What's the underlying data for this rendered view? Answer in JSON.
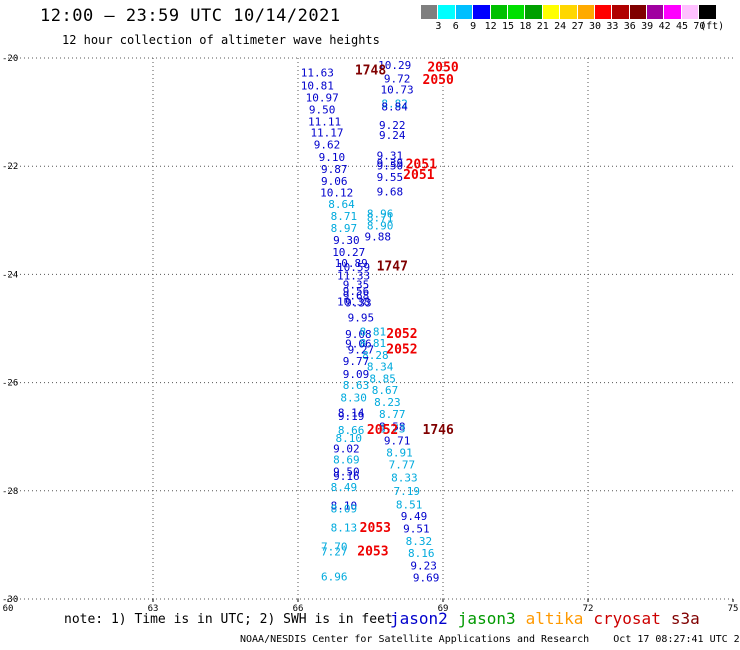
{
  "header": {
    "title": "12:00 – 23:59 UTC 10/14/2021",
    "subtitle": "12 hour collection of altimeter wave heights"
  },
  "color_scale": {
    "labels": [
      "3",
      "6",
      "9",
      "12",
      "15",
      "18",
      "21",
      "24",
      "27",
      "30",
      "33",
      "36",
      "39",
      "42",
      "45",
      "70",
      "(ft)"
    ],
    "colors": [
      "#7f7f7f",
      "#00ffff",
      "#00bfff",
      "#0000ff",
      "#00c000",
      "#00e000",
      "#00a000",
      "#ffff00",
      "#ffd700",
      "#ffaa00",
      "#ff0000",
      "#b00000",
      "#800000",
      "#a000a0",
      "#ff00ff",
      "#ffc0ff",
      "#000000"
    ]
  },
  "note": "note: 1) Time is in UTC; 2) SWH is in feet",
  "satellites": [
    {
      "name": "jason2",
      "color": "#0000cc"
    },
    {
      "name": "jason3",
      "color": "#009900"
    },
    {
      "name": "altika",
      "color": "#ff9900"
    },
    {
      "name": "cryosat",
      "color": "#cc0000"
    },
    {
      "name": "s3a",
      "color": "#800000"
    }
  ],
  "footer": "NOAA/NESDIS Center for Satellite Applications and Research    Oct 17 08:27:41 UTC 2021",
  "chart_data": {
    "type": "scatter",
    "xlim": [
      60,
      75
    ],
    "ylim": [
      -30,
      -20
    ],
    "x_ticks": [
      "60",
      "63",
      "66",
      "69",
      "72",
      "75"
    ],
    "y_ticks": [
      "-20",
      "-22",
      "-24",
      "-26",
      "-28",
      "-30"
    ],
    "grid": true,
    "points": [
      {
        "x": 66.4,
        "y": -20.27,
        "label": "11.63",
        "color": "#0000cc"
      },
      {
        "x": 66.4,
        "y": -20.51,
        "label": "10.81",
        "color": "#0000cc"
      },
      {
        "x": 66.5,
        "y": -20.73,
        "label": "10.97",
        "color": "#0000cc"
      },
      {
        "x": 66.5,
        "y": -20.95,
        "label": "9.50",
        "color": "#0000cc"
      },
      {
        "x": 66.55,
        "y": -21.17,
        "label": "11.11",
        "color": "#0000cc"
      },
      {
        "x": 66.6,
        "y": -21.38,
        "label": "11.17",
        "color": "#0000cc"
      },
      {
        "x": 66.6,
        "y": -21.6,
        "label": "9.62",
        "color": "#0000cc"
      },
      {
        "x": 66.7,
        "y": -21.83,
        "label": "9.10",
        "color": "#0000cc"
      },
      {
        "x": 66.75,
        "y": -22.05,
        "label": "9.87",
        "color": "#0000cc"
      },
      {
        "x": 66.75,
        "y": -22.27,
        "label": "9.06",
        "color": "#0000cc"
      },
      {
        "x": 66.8,
        "y": -22.49,
        "label": "10.12",
        "color": "#0000cc"
      },
      {
        "x": 66.9,
        "y": -22.7,
        "label": "8.64",
        "color": "#00aadd"
      },
      {
        "x": 66.95,
        "y": -22.92,
        "label": "8.71",
        "color": "#00aadd"
      },
      {
        "x": 66.95,
        "y": -23.14,
        "label": "8.97",
        "color": "#00aadd"
      },
      {
        "x": 67.0,
        "y": -23.36,
        "label": "9.30",
        "color": "#0000cc"
      },
      {
        "x": 67.05,
        "y": -23.59,
        "label": "10.27",
        "color": "#0000cc"
      },
      {
        "x": 67.1,
        "y": -23.79,
        "label": "10.89",
        "color": "#0000cc"
      },
      {
        "x": 67.15,
        "y": -23.86,
        "label": "10.59",
        "color": "#0000cc"
      },
      {
        "x": 67.15,
        "y": -24.02,
        "label": "11.33",
        "color": "#0000cc"
      },
      {
        "x": 67.2,
        "y": -24.19,
        "label": "9.35",
        "color": "#0000cc"
      },
      {
        "x": 67.2,
        "y": -24.31,
        "label": "9.56",
        "color": "#0000cc"
      },
      {
        "x": 67.2,
        "y": -24.39,
        "label": "9.68",
        "color": "#0000cc"
      },
      {
        "x": 67.15,
        "y": -24.5,
        "label": "10.38",
        "color": "#0000cc"
      },
      {
        "x": 67.25,
        "y": -24.52,
        "label": "9.33",
        "color": "#0000cc"
      },
      {
        "x": 67.3,
        "y": -24.8,
        "label": "9.95",
        "color": "#0000cc"
      },
      {
        "x": 67.25,
        "y": -25.1,
        "label": "9.08",
        "color": "#0000cc"
      },
      {
        "x": 67.55,
        "y": -25.06,
        "label": "8.81",
        "color": "#00aadd"
      },
      {
        "x": 67.25,
        "y": -25.28,
        "label": "9.06",
        "color": "#0000cc"
      },
      {
        "x": 67.55,
        "y": -25.27,
        "label": "8.81",
        "color": "#00aadd"
      },
      {
        "x": 67.3,
        "y": -25.39,
        "label": "9.27",
        "color": "#0000cc"
      },
      {
        "x": 67.6,
        "y": -25.49,
        "label": "8.28",
        "color": "#00aadd"
      },
      {
        "x": 67.2,
        "y": -25.6,
        "label": "9.77",
        "color": "#0000cc"
      },
      {
        "x": 67.7,
        "y": -25.7,
        "label": "8.34",
        "color": "#00aadd"
      },
      {
        "x": 67.2,
        "y": -25.84,
        "label": "9.09",
        "color": "#0000cc"
      },
      {
        "x": 67.75,
        "y": -25.92,
        "label": "8.85",
        "color": "#00aadd"
      },
      {
        "x": 67.2,
        "y": -26.04,
        "label": "8.63",
        "color": "#00aadd"
      },
      {
        "x": 67.8,
        "y": -26.14,
        "label": "8.67",
        "color": "#00aadd"
      },
      {
        "x": 67.15,
        "y": -26.28,
        "label": "8.30",
        "color": "#00aadd"
      },
      {
        "x": 67.85,
        "y": -26.36,
        "label": "8.23",
        "color": "#00aadd"
      },
      {
        "x": 67.1,
        "y": -26.55,
        "label": "8.14",
        "color": "#0000cc"
      },
      {
        "x": 67.1,
        "y": -26.62,
        "label": "9.19",
        "color": "#0000cc"
      },
      {
        "x": 67.95,
        "y": -26.58,
        "label": "8.77",
        "color": "#00aadd"
      },
      {
        "x": 67.95,
        "y": -26.81,
        "label": "8.58",
        "color": "#0000cc"
      },
      {
        "x": 67.95,
        "y": -26.85,
        "label": "8.73",
        "color": "#00aadd"
      },
      {
        "x": 67.1,
        "y": -26.88,
        "label": "8.66",
        "color": "#00aadd"
      },
      {
        "x": 67.05,
        "y": -27.02,
        "label": "8.10",
        "color": "#00aadd"
      },
      {
        "x": 68.05,
        "y": -27.07,
        "label": "9.71",
        "color": "#0000cc"
      },
      {
        "x": 67.0,
        "y": -27.22,
        "label": "9.02",
        "color": "#0000cc"
      },
      {
        "x": 68.1,
        "y": -27.29,
        "label": "8.91",
        "color": "#00aadd"
      },
      {
        "x": 67.0,
        "y": -27.42,
        "label": "8.69",
        "color": "#00aadd"
      },
      {
        "x": 68.15,
        "y": -27.51,
        "label": "7.77",
        "color": "#00aadd"
      },
      {
        "x": 67.0,
        "y": -27.64,
        "label": "9.50",
        "color": "#0000cc"
      },
      {
        "x": 67.0,
        "y": -27.73,
        "label": "9.16",
        "color": "#0000cc"
      },
      {
        "x": 68.2,
        "y": -27.75,
        "label": "8.33",
        "color": "#00aadd"
      },
      {
        "x": 66.95,
        "y": -27.93,
        "label": "8.49",
        "color": "#00aadd"
      },
      {
        "x": 68.25,
        "y": -28.0,
        "label": "7.19",
        "color": "#00aadd"
      },
      {
        "x": 68.3,
        "y": -28.25,
        "label": "8.51",
        "color": "#00aadd"
      },
      {
        "x": 66.95,
        "y": -28.27,
        "label": "8.10",
        "color": "#0000cc"
      },
      {
        "x": 66.95,
        "y": -28.33,
        "label": "8.09",
        "color": "#00aadd"
      },
      {
        "x": 68.4,
        "y": -28.47,
        "label": "9.49",
        "color": "#0000cc"
      },
      {
        "x": 66.95,
        "y": -28.68,
        "label": "8.13",
        "color": "#00aadd"
      },
      {
        "x": 68.45,
        "y": -28.7,
        "label": "9.51",
        "color": "#0000cc"
      },
      {
        "x": 68.5,
        "y": -28.93,
        "label": "8.32",
        "color": "#00aadd"
      },
      {
        "x": 66.75,
        "y": -29.03,
        "label": "7.70",
        "color": "#00aadd"
      },
      {
        "x": 66.75,
        "y": -29.12,
        "label": "7.27",
        "color": "#00aadd"
      },
      {
        "x": 68.55,
        "y": -29.15,
        "label": "8.16",
        "color": "#00aadd"
      },
      {
        "x": 68.6,
        "y": -29.38,
        "label": "9.23",
        "color": "#0000cc"
      },
      {
        "x": 66.75,
        "y": -29.58,
        "label": "6.96",
        "color": "#00aadd"
      },
      {
        "x": 68.65,
        "y": -29.6,
        "label": "9.69",
        "color": "#0000cc"
      },
      {
        "x": 68.0,
        "y": -20.13,
        "label": "10.29",
        "color": "#0000cc"
      },
      {
        "x": 68.05,
        "y": -20.38,
        "label": "9.72",
        "color": "#0000cc"
      },
      {
        "x": 68.05,
        "y": -20.58,
        "label": "10.73",
        "color": "#0000cc"
      },
      {
        "x": 68.0,
        "y": -20.84,
        "label": "8.82",
        "color": "#00aadd"
      },
      {
        "x": 68.0,
        "y": -20.9,
        "label": "8.84",
        "color": "#0000cc"
      },
      {
        "x": 67.95,
        "y": -21.24,
        "label": "9.22",
        "color": "#0000cc"
      },
      {
        "x": 67.95,
        "y": -21.42,
        "label": "9.24",
        "color": "#0000cc"
      },
      {
        "x": 67.9,
        "y": -21.8,
        "label": "9.31",
        "color": "#0000cc"
      },
      {
        "x": 67.9,
        "y": -21.94,
        "label": "9.39",
        "color": "#0000cc"
      },
      {
        "x": 67.9,
        "y": -21.99,
        "label": "9.50",
        "color": "#0000cc"
      },
      {
        "x": 67.9,
        "y": -22.2,
        "label": "9.55",
        "color": "#0000cc"
      },
      {
        "x": 67.9,
        "y": -22.47,
        "label": "9.68",
        "color": "#0000cc"
      },
      {
        "x": 67.7,
        "y": -22.87,
        "label": "8.96",
        "color": "#00aadd"
      },
      {
        "x": 67.7,
        "y": -22.95,
        "label": "8.71",
        "color": "#00aadd"
      },
      {
        "x": 67.7,
        "y": -23.1,
        "label": "8.90",
        "color": "#00aadd"
      },
      {
        "x": 67.65,
        "y": -23.3,
        "label": "9.88",
        "color": "#0000cc"
      },
      {
        "x": 67.5,
        "y": -20.23,
        "label": "1748",
        "color": "#800000",
        "bold": true
      },
      {
        "x": 69.0,
        "y": -20.18,
        "label": "2050",
        "color": "#ee0000",
        "bold": true
      },
      {
        "x": 68.9,
        "y": -20.41,
        "label": "2050",
        "color": "#ee0000",
        "bold": true
      },
      {
        "x": 68.55,
        "y": -21.97,
        "label": "2051",
        "color": "#ee0000",
        "bold": true
      },
      {
        "x": 68.5,
        "y": -22.16,
        "label": "2051",
        "color": "#ee0000",
        "bold": true
      },
      {
        "x": 67.95,
        "y": -23.85,
        "label": "1747",
        "color": "#800000",
        "bold": true
      },
      {
        "x": 68.15,
        "y": -25.1,
        "label": "2052",
        "color": "#ee0000",
        "bold": true
      },
      {
        "x": 68.15,
        "y": -25.39,
        "label": "2052",
        "color": "#ee0000",
        "bold": true
      },
      {
        "x": 67.75,
        "y": -26.88,
        "label": "2052",
        "color": "#ee0000",
        "bold": true
      },
      {
        "x": 68.9,
        "y": -26.88,
        "label": "1746",
        "color": "#800000",
        "bold": true
      },
      {
        "x": 67.6,
        "y": -28.69,
        "label": "2053",
        "color": "#ee0000",
        "bold": true
      },
      {
        "x": 67.55,
        "y": -29.12,
        "label": "2053",
        "color": "#ee0000",
        "bold": true
      }
    ]
  }
}
